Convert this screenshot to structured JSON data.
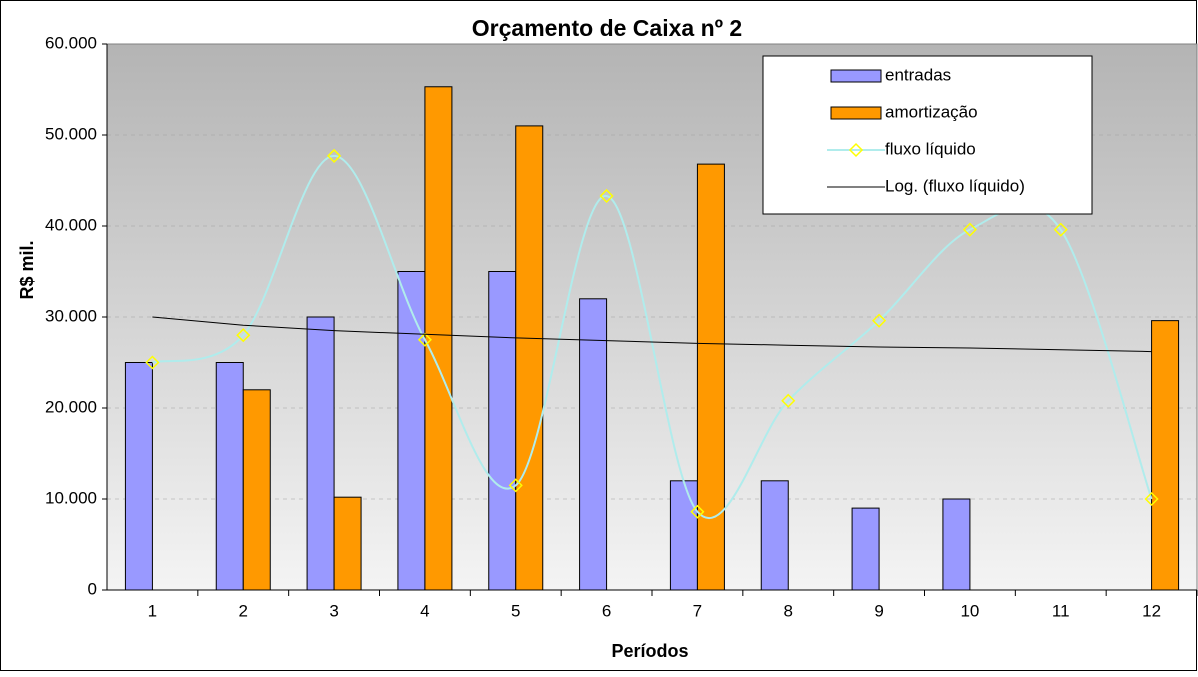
{
  "chart_data": {
    "type": "bar",
    "title": "Orçamento de Caixa nº 2",
    "x_label": "Períodos",
    "y_label": "R$ mil.",
    "categories": [
      "1",
      "2",
      "3",
      "4",
      "5",
      "6",
      "7",
      "8",
      "9",
      "10",
      "11",
      "12"
    ],
    "series": [
      {
        "name": "entradas",
        "type": "bar",
        "color": "#9999ff",
        "values": [
          25000,
          25000,
          30000,
          35000,
          35000,
          32000,
          12000,
          12000,
          9000,
          10000,
          0,
          0
        ]
      },
      {
        "name": "amortização",
        "type": "bar",
        "color": "#ff9900",
        "values": [
          0,
          22000,
          10200,
          55300,
          51000,
          0,
          46800,
          0,
          0,
          0,
          0,
          29600
        ]
      },
      {
        "name": "fluxo líquido",
        "type": "line",
        "color": "#b0ecec",
        "marker_color": "#ffff00",
        "smooth": true,
        "values": [
          25000,
          28000,
          47700,
          27500,
          11500,
          43300,
          8600,
          20800,
          29600,
          39600,
          39600,
          10000
        ]
      },
      {
        "name": "Log. (fluxo líquido)",
        "type": "line",
        "color": "#000000",
        "values": [
          30000,
          29100,
          28500,
          28100,
          27700,
          27400,
          27100,
          26900,
          26700,
          26600,
          26400,
          26200
        ]
      }
    ],
    "ylim": [
      0,
      60000
    ],
    "yticks": [
      {
        "value": 0,
        "label": "0"
      },
      {
        "value": 10000,
        "label": "10.000"
      },
      {
        "value": 20000,
        "label": "20.000"
      },
      {
        "value": 30000,
        "label": "30.000"
      },
      {
        "value": 40000,
        "label": "40.000"
      },
      {
        "value": 50000,
        "label": "50.000"
      },
      {
        "value": 60000,
        "label": "60.000"
      }
    ],
    "grid": true,
    "legend": "top-right"
  }
}
